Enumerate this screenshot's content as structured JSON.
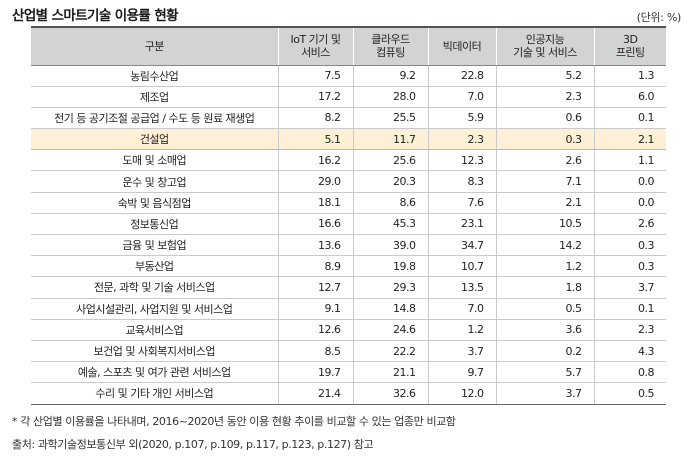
{
  "title": "산업별 스마트기술 이용률 현황",
  "unit": "(단위: %)",
  "table": {
    "headers": [
      "구분",
      "IoT 기기 및\n서비스",
      "클라우드\n컴퓨팅",
      "빅데이터",
      "인공지능\n기술 및 서비스",
      "3D\n프린팅"
    ],
    "rows": [
      {
        "name": "농림수산업",
        "values": [
          "7.5",
          "9.2",
          "22.8",
          "5.2",
          "1.3"
        ]
      },
      {
        "name": "제조업",
        "values": [
          "17.2",
          "28.0",
          "7.0",
          "2.3",
          "6.0"
        ]
      },
      {
        "name": "전기 등 공기조절 공급업 / 수도 등 원료 재생업",
        "values": [
          "8.2",
          "25.5",
          "5.9",
          "0.6",
          "0.1"
        ]
      },
      {
        "name": "건설업",
        "values": [
          "5.1",
          "11.7",
          "2.3",
          "0.3",
          "2.1"
        ],
        "highlight": true
      },
      {
        "name": "도매 및 소매업",
        "values": [
          "16.2",
          "25.6",
          "12.3",
          "2.6",
          "1.1"
        ]
      },
      {
        "name": "운수 및 창고업",
        "values": [
          "29.0",
          "20.3",
          "8.3",
          "7.1",
          "0.0"
        ]
      },
      {
        "name": "숙박 및 음식점업",
        "values": [
          "18.1",
          "8.6",
          "7.6",
          "2.1",
          "0.0"
        ]
      },
      {
        "name": "정보통신업",
        "values": [
          "16.6",
          "45.3",
          "23.1",
          "10.5",
          "2.6"
        ]
      },
      {
        "name": "금융 및 보험업",
        "values": [
          "13.6",
          "39.0",
          "34.7",
          "14.2",
          "0.3"
        ]
      },
      {
        "name": "부동산업",
        "values": [
          "8.9",
          "19.8",
          "10.7",
          "1.2",
          "0.3"
        ]
      },
      {
        "name": "전문, 과학 및 기술 서비스업",
        "values": [
          "12.7",
          "29.3",
          "13.5",
          "1.8",
          "3.7"
        ]
      },
      {
        "name": "사업시설관리, 사업지원 및 서비스업",
        "values": [
          "9.1",
          "14.8",
          "7.0",
          "0.5",
          "0.1"
        ]
      },
      {
        "name": "교육서비스업",
        "values": [
          "12.6",
          "24.6",
          "1.2",
          "3.6",
          "2.3"
        ]
      },
      {
        "name": "보건업 및 사회복지서비스업",
        "values": [
          "8.5",
          "22.2",
          "3.7",
          "0.2",
          "4.3"
        ]
      },
      {
        "name": "예술, 스포츠 및 여가 관련 서비스업",
        "values": [
          "19.7",
          "21.1",
          "9.7",
          "5.7",
          "0.8"
        ]
      },
      {
        "name": "수리 및 기타 개인 서비스업",
        "values": [
          "21.4",
          "32.6",
          "12.0",
          "3.7",
          "0.5"
        ]
      }
    ]
  },
  "note": "* 각 산업별 이용률을 나타내며, 2016~2020년 동안 이용 현황 추이를 비교할 수 있는 업종만 비교함",
  "source": "출처: 과학기술정보통신부 외(2020, p.107, p.109, p.117, p.123, p.127) 참고",
  "colors": {
    "header_bg": "#d2d3d5",
    "highlight_bg": "#fdf0d5",
    "highlight_border": "#e7b16a"
  }
}
